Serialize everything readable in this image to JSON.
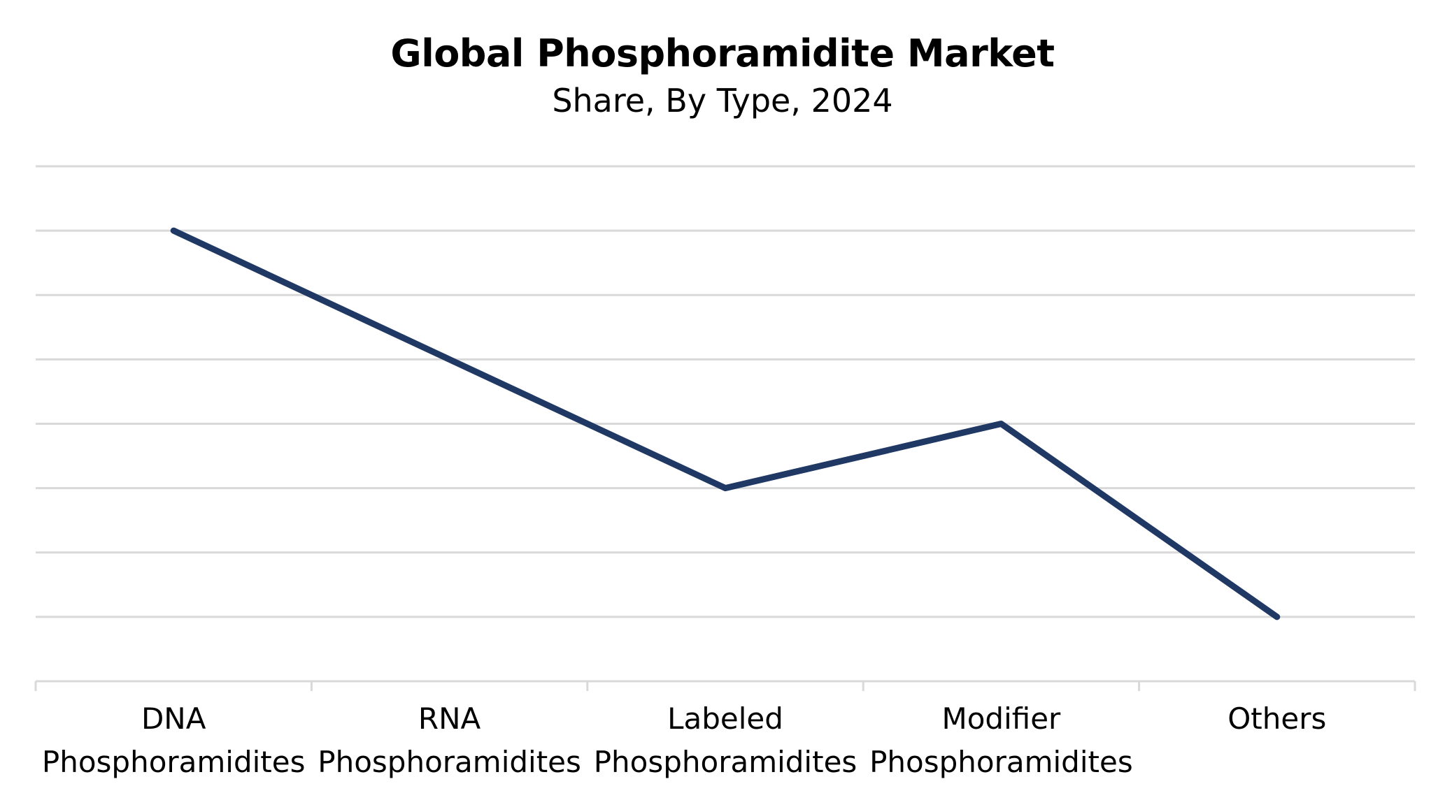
{
  "chart_data": {
    "type": "line",
    "title": "Global Phosphoramidite Market",
    "subtitle": "Share, By Type, 2024",
    "categories": [
      [
        "DNA",
        "Phosphoramidites"
      ],
      [
        "RNA",
        "Phosphoramidites"
      ],
      [
        "Labeled",
        "Phosphoramidites"
      ],
      [
        "Modifier",
        "Phosphoramidites"
      ],
      [
        "Others"
      ]
    ],
    "series": [
      {
        "values": [
          7,
          5,
          3,
          4,
          1
        ],
        "color": "#1f3864"
      }
    ],
    "ylim": [
      0,
      8
    ],
    "gridlines": 8,
    "grid": true,
    "legend": "none",
    "colors": {
      "grid": "#d9d9d9",
      "axis": "#d9d9d9",
      "text": "#000000"
    }
  }
}
